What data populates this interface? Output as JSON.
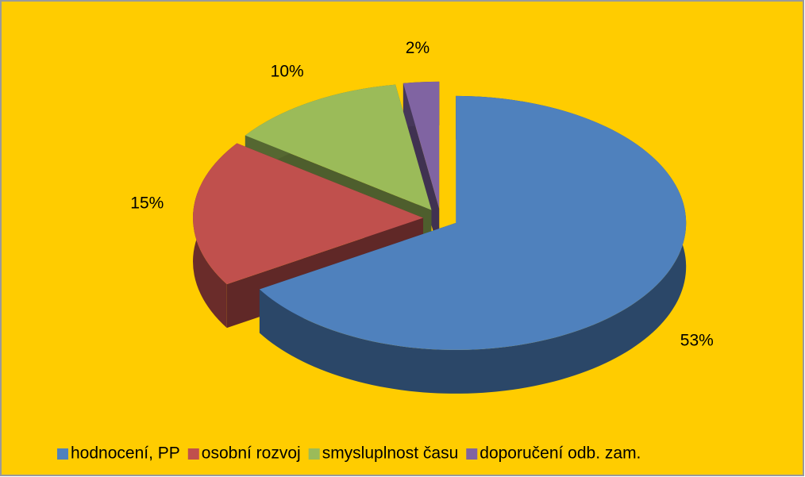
{
  "chart_data": {
    "type": "pie",
    "categories": [
      "hodnocení, PP",
      "osobní rozvoj",
      "smysluplnost času",
      "doporučení odb. zam."
    ],
    "values": [
      53,
      15,
      10,
      2
    ],
    "value_labels": [
      "53%",
      "15%",
      "10%",
      "2%"
    ],
    "colors": [
      "#4F81BD",
      "#C0504D",
      "#9BBB59",
      "#8064A2"
    ],
    "legend": "bottom"
  }
}
